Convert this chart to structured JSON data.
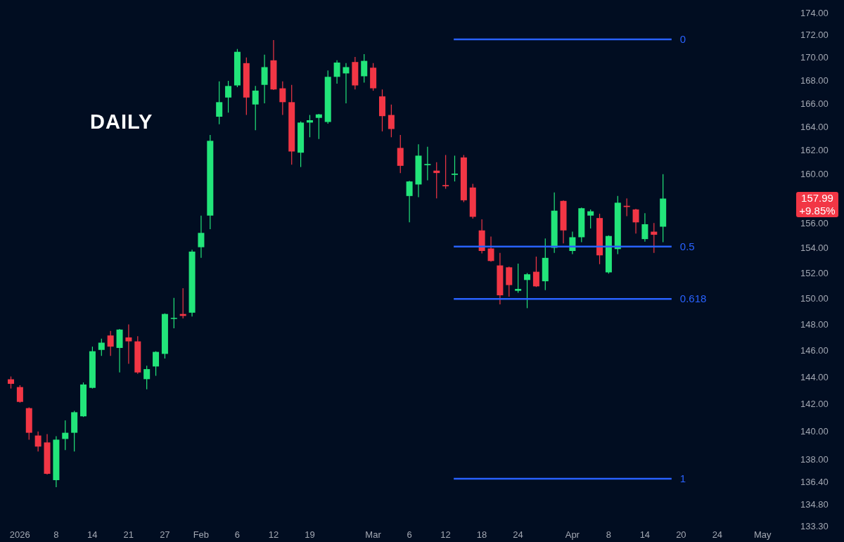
{
  "chart_data": {
    "type": "candlestick",
    "title": "DAILY",
    "categories": [
      null,
      "2026",
      null,
      null,
      null,
      "8",
      null,
      null,
      null,
      "14",
      null,
      null,
      null,
      "21",
      null,
      null,
      null,
      "27",
      null,
      null,
      null,
      "Feb",
      null,
      null,
      null,
      "6",
      null,
      null,
      null,
      "12",
      null,
      null,
      null,
      "19",
      null,
      null,
      null,
      null,
      null,
      null,
      "Mar",
      null,
      null,
      null,
      "6",
      null,
      null,
      null,
      "12",
      null,
      null,
      null,
      "18",
      null,
      null,
      null,
      "24",
      null,
      null,
      null,
      null,
      null,
      "Apr",
      null,
      null,
      null,
      "8",
      null,
      null,
      null,
      "14",
      null,
      null,
      null,
      "20",
      null,
      null,
      null,
      "24",
      null,
      null,
      null,
      null,
      "May"
    ],
    "ohlc": [
      [
        143.84,
        144.05,
        143.15,
        143.5
      ],
      [
        143.26,
        143.4,
        142.1,
        142.16
      ],
      [
        141.7,
        141.75,
        139.4,
        139.9
      ],
      [
        139.7,
        140.0,
        138.55,
        138.9
      ],
      [
        139.2,
        139.8,
        136.9,
        136.95
      ],
      [
        136.5,
        139.65,
        136.0,
        139.4
      ],
      [
        139.45,
        140.8,
        138.65,
        139.9
      ],
      [
        139.9,
        141.5,
        138.55,
        141.4
      ],
      [
        141.1,
        143.6,
        141.05,
        143.45
      ],
      [
        143.2,
        146.3,
        143.15,
        145.95
      ],
      [
        146.05,
        146.9,
        145.6,
        146.6
      ],
      [
        147.15,
        147.5,
        145.6,
        146.3
      ],
      [
        146.2,
        147.65,
        144.35,
        147.6
      ],
      [
        147.0,
        148.0,
        145.0,
        146.7
      ],
      [
        146.7,
        147.1,
        144.25,
        144.35
      ],
      [
        143.85,
        144.85,
        143.1,
        144.6
      ],
      [
        144.8,
        145.95,
        144.1,
        145.9
      ],
      [
        145.75,
        148.85,
        145.4,
        148.8
      ],
      [
        148.45,
        150.05,
        147.7,
        148.5
      ],
      [
        148.8,
        150.8,
        148.45,
        148.65
      ],
      [
        148.9,
        153.85,
        148.6,
        153.7
      ],
      [
        154.05,
        156.6,
        153.2,
        155.2
      ],
      [
        156.6,
        163.3,
        155.5,
        162.8
      ],
      [
        164.85,
        167.9,
        164.2,
        166.1
      ],
      [
        166.5,
        167.95,
        165.2,
        167.5
      ],
      [
        167.55,
        170.75,
        167.4,
        170.5
      ],
      [
        169.5,
        170.0,
        165.0,
        166.5
      ],
      [
        165.9,
        167.5,
        163.7,
        167.1
      ],
      [
        167.6,
        170.25,
        166.0,
        169.15
      ],
      [
        169.75,
        171.55,
        167.15,
        167.2
      ],
      [
        167.3,
        167.9,
        165.0,
        166.1
      ],
      [
        166.1,
        167.6,
        160.8,
        161.9
      ],
      [
        161.8,
        164.45,
        160.6,
        164.35
      ],
      [
        164.35,
        165.0,
        163.1,
        164.55
      ],
      [
        164.75,
        165.1,
        162.95,
        165.05
      ],
      [
        164.4,
        168.85,
        164.25,
        168.3
      ],
      [
        168.3,
        169.75,
        167.7,
        169.55
      ],
      [
        168.6,
        169.5,
        166.0,
        169.15
      ],
      [
        169.6,
        170.05,
        167.2,
        167.55
      ],
      [
        168.35,
        170.3,
        167.8,
        169.7
      ],
      [
        169.1,
        169.5,
        167.1,
        167.3
      ],
      [
        166.6,
        167.2,
        163.6,
        164.9
      ],
      [
        165.0,
        165.9,
        163.1,
        163.8
      ],
      [
        162.2,
        163.3,
        160.1,
        160.7
      ],
      [
        158.2,
        159.45,
        156.05,
        159.4
      ],
      [
        159.15,
        162.5,
        158.1,
        161.55
      ],
      [
        160.75,
        162.3,
        159.5,
        160.85
      ],
      [
        160.3,
        161.0,
        158.0,
        160.1
      ],
      [
        159.1,
        161.6,
        158.8,
        159.0
      ],
      [
        159.95,
        161.55,
        159.4,
        160.05
      ],
      [
        161.4,
        161.6,
        157.7,
        157.85
      ],
      [
        158.9,
        159.2,
        156.35,
        156.5
      ],
      [
        155.4,
        156.3,
        153.55,
        153.75
      ],
      [
        153.95,
        154.9,
        152.9,
        152.95
      ],
      [
        152.6,
        153.6,
        149.55,
        150.25
      ],
      [
        152.45,
        152.5,
        150.15,
        151.05
      ],
      [
        150.6,
        152.75,
        150.45,
        150.75
      ],
      [
        151.45,
        152.0,
        149.25,
        151.9
      ],
      [
        152.1,
        153.3,
        150.9,
        150.95
      ],
      [
        151.35,
        154.75,
        150.65,
        153.2
      ],
      [
        154.0,
        158.5,
        153.6,
        157.0
      ],
      [
        157.8,
        157.85,
        154.35,
        155.4
      ],
      [
        153.75,
        155.3,
        153.5,
        154.85
      ],
      [
        154.85,
        157.25,
        154.45,
        157.2
      ],
      [
        156.6,
        157.1,
        155.55,
        156.95
      ],
      [
        156.4,
        156.75,
        152.7,
        153.4
      ],
      [
        152.05,
        155.0,
        151.95,
        154.95
      ],
      [
        153.9,
        158.2,
        153.5,
        157.65
      ],
      [
        157.4,
        158.0,
        156.55,
        157.3
      ],
      [
        157.1,
        157.15,
        155.15,
        156.05
      ],
      [
        154.7,
        156.8,
        154.5,
        155.9
      ],
      [
        155.3,
        156.0,
        153.6,
        155.05
      ],
      [
        155.7,
        160.0,
        154.45,
        157.99
      ],
      null,
      null,
      null,
      null,
      null,
      null,
      null,
      null,
      null,
      null,
      null
    ],
    "colors": [
      "#f23645",
      "#f23645",
      "#f23645",
      "#f23645",
      "#f23645",
      "#22e57a",
      "#22e57a",
      "#22e57a",
      "#22e57a",
      "#22e57a",
      "#22e57a",
      "#f23645",
      "#22e57a",
      "#f23645",
      "#f23645",
      "#22e57a",
      "#22e57a",
      "#22e57a",
      "#22e57a",
      "#f23645",
      "#22e57a",
      "#22e57a",
      "#22e57a",
      "#22e57a",
      "#22e57a",
      "#22e57a",
      "#f23645",
      "#22e57a",
      "#22e57a",
      "#f23645",
      "#f23645",
      "#f23645",
      "#22e57a",
      "#22e57a",
      "#22e57a",
      "#22e57a",
      "#22e57a",
      "#22e57a",
      "#f23645",
      "#22e57a",
      "#f23645",
      "#f23645",
      "#f23645",
      "#f23645",
      "#22e57a",
      "#22e57a",
      "#22e57a",
      "#f23645",
      "#f23645",
      "#22e57a",
      "#f23645",
      "#f23645",
      "#f23645",
      "#f23645",
      "#f23645",
      "#f23645",
      "#22e57a",
      "#22e57a",
      "#f23645",
      "#22e57a",
      "#22e57a",
      "#f23645",
      "#22e57a",
      "#22e57a",
      "#22e57a",
      "#f23645",
      "#22e57a",
      "#22e57a",
      "#f23645",
      "#f23645",
      "#22e57a",
      "#f23645",
      "#22e57a",
      null,
      null,
      null,
      null,
      null,
      null,
      null,
      null,
      null,
      null,
      null
    ],
    "log": true,
    "ylim": [
      133.3,
      175.15
    ],
    "yticks": [
      {
        "value": 133.3,
        "label": "133.30"
      },
      {
        "value": 134.8,
        "label": "134.80"
      },
      {
        "value": 136.4,
        "label": "136.40"
      },
      {
        "value": 138,
        "label": "138.00"
      },
      {
        "value": 140,
        "label": "140.00"
      },
      {
        "value": 142,
        "label": "142.00"
      },
      {
        "value": 144,
        "label": "144.00"
      },
      {
        "value": 146,
        "label": "146.00"
      },
      {
        "value": 148,
        "label": "148.00"
      },
      {
        "value": 150,
        "label": "150.00"
      },
      {
        "value": 152,
        "label": "152.00"
      },
      {
        "value": 154,
        "label": "154.00"
      },
      {
        "value": 156,
        "label": "156.00"
      },
      {
        "value": 160,
        "label": "160.00"
      },
      {
        "value": 162,
        "label": "162.00"
      },
      {
        "value": 164,
        "label": "164.00"
      },
      {
        "value": 166,
        "label": "166.00"
      },
      {
        "value": 168,
        "label": "168.00"
      },
      {
        "value": 170,
        "label": "170.00"
      },
      {
        "value": 172,
        "label": "172.00"
      },
      {
        "value": 174,
        "label": "174.00"
      }
    ],
    "ref_lines": [
      {
        "axis": "y",
        "value": 171.6,
        "color": "#2962ff"
      },
      {
        "axis": "y",
        "value": 154.1,
        "color": "#2962ff"
      },
      {
        "axis": "y",
        "value": 149.97,
        "color": "#2962ff"
      },
      {
        "axis": "y",
        "value": 136.6,
        "color": "#2962ff"
      }
    ],
    "annotations": [
      "0",
      "0.5",
      "0.618",
      "1",
      "157.99",
      "+9.85%"
    ]
  }
}
